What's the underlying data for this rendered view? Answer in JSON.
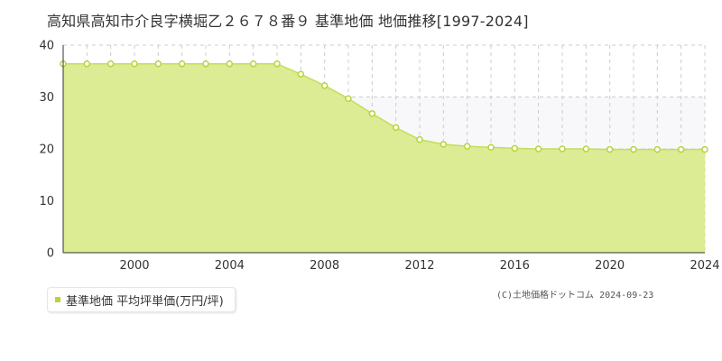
{
  "chart_data": {
    "type": "area",
    "title": "高知県高知市介良字横堀乙２６７８番９ 基準地価 地価推移[1997-2024]",
    "series_name": "基準地価 平均坪単価(万円/坪)",
    "x": [
      1997,
      1998,
      1999,
      2000,
      2001,
      2002,
      2003,
      2004,
      2005,
      2006,
      2007,
      2008,
      2009,
      2010,
      2011,
      2012,
      2013,
      2014,
      2015,
      2016,
      2017,
      2018,
      2019,
      2020,
      2021,
      2022,
      2023,
      2024
    ],
    "values": [
      36.4,
      36.4,
      36.4,
      36.4,
      36.4,
      36.4,
      36.4,
      36.4,
      36.4,
      36.4,
      34.4,
      32.2,
      29.7,
      26.8,
      24.1,
      21.8,
      20.9,
      20.5,
      20.3,
      20.1,
      20.0,
      20.0,
      20.0,
      19.9,
      19.9,
      19.9,
      19.9,
      19.9
    ],
    "xlim": [
      1997,
      2024
    ],
    "ylim": [
      0,
      40
    ],
    "x_ticks": [
      2000,
      2004,
      2008,
      2012,
      2016,
      2020,
      2024
    ],
    "y_ticks": [
      0,
      10,
      20,
      30,
      40
    ],
    "grid": true,
    "legend_position": "bottom-left",
    "colors": {
      "fill": "#dbec94",
      "line": "#c3de5a",
      "marker_stroke": "#b5d538",
      "upper_band": "#f8f8fa",
      "grid_dashed": "#cccccc",
      "axis": "#333333"
    }
  },
  "copyright": "(C)土地価格ドットコム 2024-09-23"
}
